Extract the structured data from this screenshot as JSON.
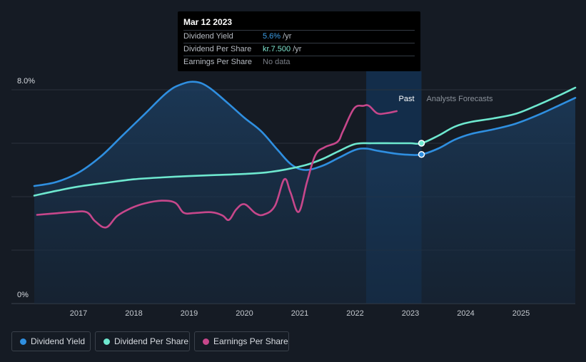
{
  "tooltip": {
    "date": "Mar 12 2023",
    "rows": [
      {
        "label": "Dividend Yield",
        "value": "5.6%",
        "unit": " /yr"
      },
      {
        "label": "Dividend Per Share",
        "value": "kr.7.500",
        "unit": " /yr"
      },
      {
        "label": "Earnings Per Share",
        "value": "No data",
        "unit": ""
      }
    ]
  },
  "regions": {
    "past_label": "Past",
    "forecast_label": "Analysts Forecasts"
  },
  "legend": [
    {
      "label": "Dividend Yield",
      "color": "#2f8fe0"
    },
    {
      "label": "Dividend Per Share",
      "color": "#6ee8cf"
    },
    {
      "label": "Earnings Per Share",
      "color": "#c7478b"
    }
  ],
  "colors": {
    "background": "#151b24",
    "past_highlight": "#13304f",
    "area_fill": "#1b3652",
    "gridline": "#2a323c"
  },
  "chart_data": {
    "type": "line",
    "y_tick_labels": [
      "8.0%",
      "0%"
    ],
    "ylim": [
      0,
      8
    ],
    "xlim": [
      2016.2,
      2025.98
    ],
    "x_tick_labels": [
      "2017",
      "2018",
      "2019",
      "2020",
      "2021",
      "2022",
      "2023",
      "2024",
      "2025"
    ],
    "x_ticks": [
      2017,
      2018,
      2019,
      2020,
      2021,
      2022,
      2023,
      2024,
      2025
    ],
    "gridlines": [
      0,
      2,
      4,
      6,
      8
    ],
    "highlight_range": [
      2022.2,
      2023.2
    ],
    "marker_x": 2023.2,
    "series": [
      {
        "name": "Dividend Yield",
        "color": "#2f8fe0",
        "filled": true,
        "points": [
          [
            2016.2,
            4.4
          ],
          [
            2016.6,
            4.55
          ],
          [
            2017.0,
            4.9
          ],
          [
            2017.4,
            5.5
          ],
          [
            2017.8,
            6.3
          ],
          [
            2018.2,
            7.1
          ],
          [
            2018.6,
            7.9
          ],
          [
            2018.85,
            8.2
          ],
          [
            2019.1,
            8.3
          ],
          [
            2019.35,
            8.1
          ],
          [
            2019.7,
            7.5
          ],
          [
            2020.0,
            6.95
          ],
          [
            2020.3,
            6.45
          ],
          [
            2020.6,
            5.75
          ],
          [
            2020.85,
            5.2
          ],
          [
            2021.1,
            5.0
          ],
          [
            2021.4,
            5.15
          ],
          [
            2021.7,
            5.45
          ],
          [
            2022.0,
            5.75
          ],
          [
            2022.2,
            5.8
          ],
          [
            2022.4,
            5.72
          ],
          [
            2022.7,
            5.62
          ],
          [
            2022.95,
            5.57
          ],
          [
            2023.2,
            5.58
          ],
          [
            2023.5,
            5.8
          ],
          [
            2023.8,
            6.13
          ],
          [
            2024.1,
            6.35
          ],
          [
            2024.5,
            6.52
          ],
          [
            2024.9,
            6.73
          ],
          [
            2025.3,
            7.05
          ],
          [
            2025.7,
            7.43
          ],
          [
            2025.98,
            7.7
          ]
        ]
      },
      {
        "name": "Dividend Per Share",
        "color": "#6ee8cf",
        "filled": false,
        "points": [
          [
            2016.2,
            4.04
          ],
          [
            2016.6,
            4.22
          ],
          [
            2017.0,
            4.38
          ],
          [
            2017.5,
            4.52
          ],
          [
            2018.0,
            4.65
          ],
          [
            2018.5,
            4.72
          ],
          [
            2019.0,
            4.77
          ],
          [
            2019.5,
            4.81
          ],
          [
            2020.0,
            4.85
          ],
          [
            2020.4,
            4.91
          ],
          [
            2020.75,
            5.02
          ],
          [
            2021.1,
            5.18
          ],
          [
            2021.4,
            5.4
          ],
          [
            2021.7,
            5.7
          ],
          [
            2022.0,
            5.97
          ],
          [
            2022.3,
            6.0
          ],
          [
            2022.7,
            6.0
          ],
          [
            2023.0,
            6.0
          ],
          [
            2023.2,
            6.0
          ],
          [
            2023.5,
            6.28
          ],
          [
            2023.8,
            6.62
          ],
          [
            2024.1,
            6.8
          ],
          [
            2024.5,
            6.93
          ],
          [
            2024.9,
            7.1
          ],
          [
            2025.3,
            7.43
          ],
          [
            2025.7,
            7.8
          ],
          [
            2025.98,
            8.08
          ]
        ]
      },
      {
        "name": "Earnings Per Share",
        "color": "#c7478b",
        "filled": false,
        "points": [
          [
            2016.25,
            3.32
          ],
          [
            2016.6,
            3.38
          ],
          [
            2016.9,
            3.43
          ],
          [
            2017.15,
            3.42
          ],
          [
            2017.3,
            3.08
          ],
          [
            2017.5,
            2.85
          ],
          [
            2017.7,
            3.28
          ],
          [
            2017.95,
            3.57
          ],
          [
            2018.2,
            3.75
          ],
          [
            2018.5,
            3.85
          ],
          [
            2018.75,
            3.77
          ],
          [
            2018.9,
            3.4
          ],
          [
            2019.1,
            3.39
          ],
          [
            2019.4,
            3.42
          ],
          [
            2019.6,
            3.3
          ],
          [
            2019.72,
            3.13
          ],
          [
            2019.85,
            3.52
          ],
          [
            2020.0,
            3.72
          ],
          [
            2020.2,
            3.38
          ],
          [
            2020.35,
            3.33
          ],
          [
            2020.55,
            3.65
          ],
          [
            2020.72,
            4.65
          ],
          [
            2020.83,
            4.17
          ],
          [
            2020.98,
            3.43
          ],
          [
            2021.13,
            4.55
          ],
          [
            2021.28,
            5.55
          ],
          [
            2021.45,
            5.85
          ],
          [
            2021.68,
            6.05
          ],
          [
            2021.78,
            6.45
          ],
          [
            2021.98,
            7.3
          ],
          [
            2022.15,
            7.4
          ],
          [
            2022.25,
            7.4
          ],
          [
            2022.4,
            7.12
          ],
          [
            2022.55,
            7.12
          ],
          [
            2022.75,
            7.2
          ]
        ]
      }
    ]
  }
}
